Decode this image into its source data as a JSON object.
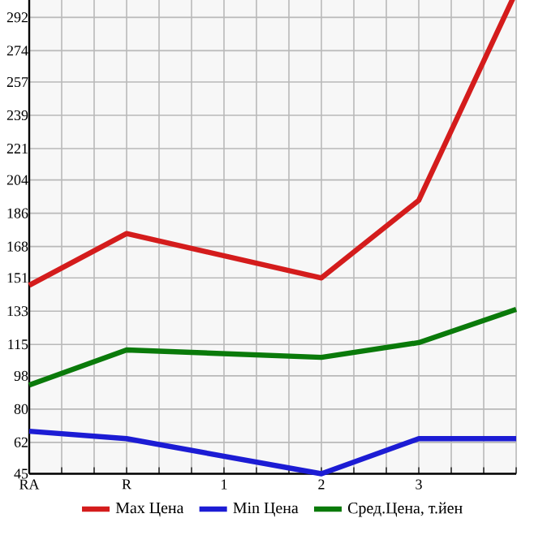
{
  "chart_data": {
    "type": "line",
    "categories": [
      "RA",
      "R",
      "1",
      "2",
      "3",
      null
    ],
    "series": [
      {
        "name": "Max Цена",
        "color": "#d41c1c",
        "values": [
          147,
          175,
          null,
          151,
          193,
          306
        ]
      },
      {
        "name": "Min Цена",
        "color": "#1c1cd4",
        "values": [
          68,
          64,
          null,
          45,
          64,
          64
        ]
      },
      {
        "name": "Сред.Цена, т.йен",
        "color": "#0a7a0a",
        "values": [
          93,
          112,
          null,
          108,
          116,
          134
        ]
      }
    ],
    "ylim": [
      45,
      306
    ],
    "yticks": [
      45,
      62,
      80,
      98,
      115,
      133,
      151,
      168,
      186,
      204,
      221,
      239,
      257,
      274,
      292
    ],
    "grid": true,
    "legend": "bottom",
    "marker": "none",
    "line_style": "solid"
  }
}
